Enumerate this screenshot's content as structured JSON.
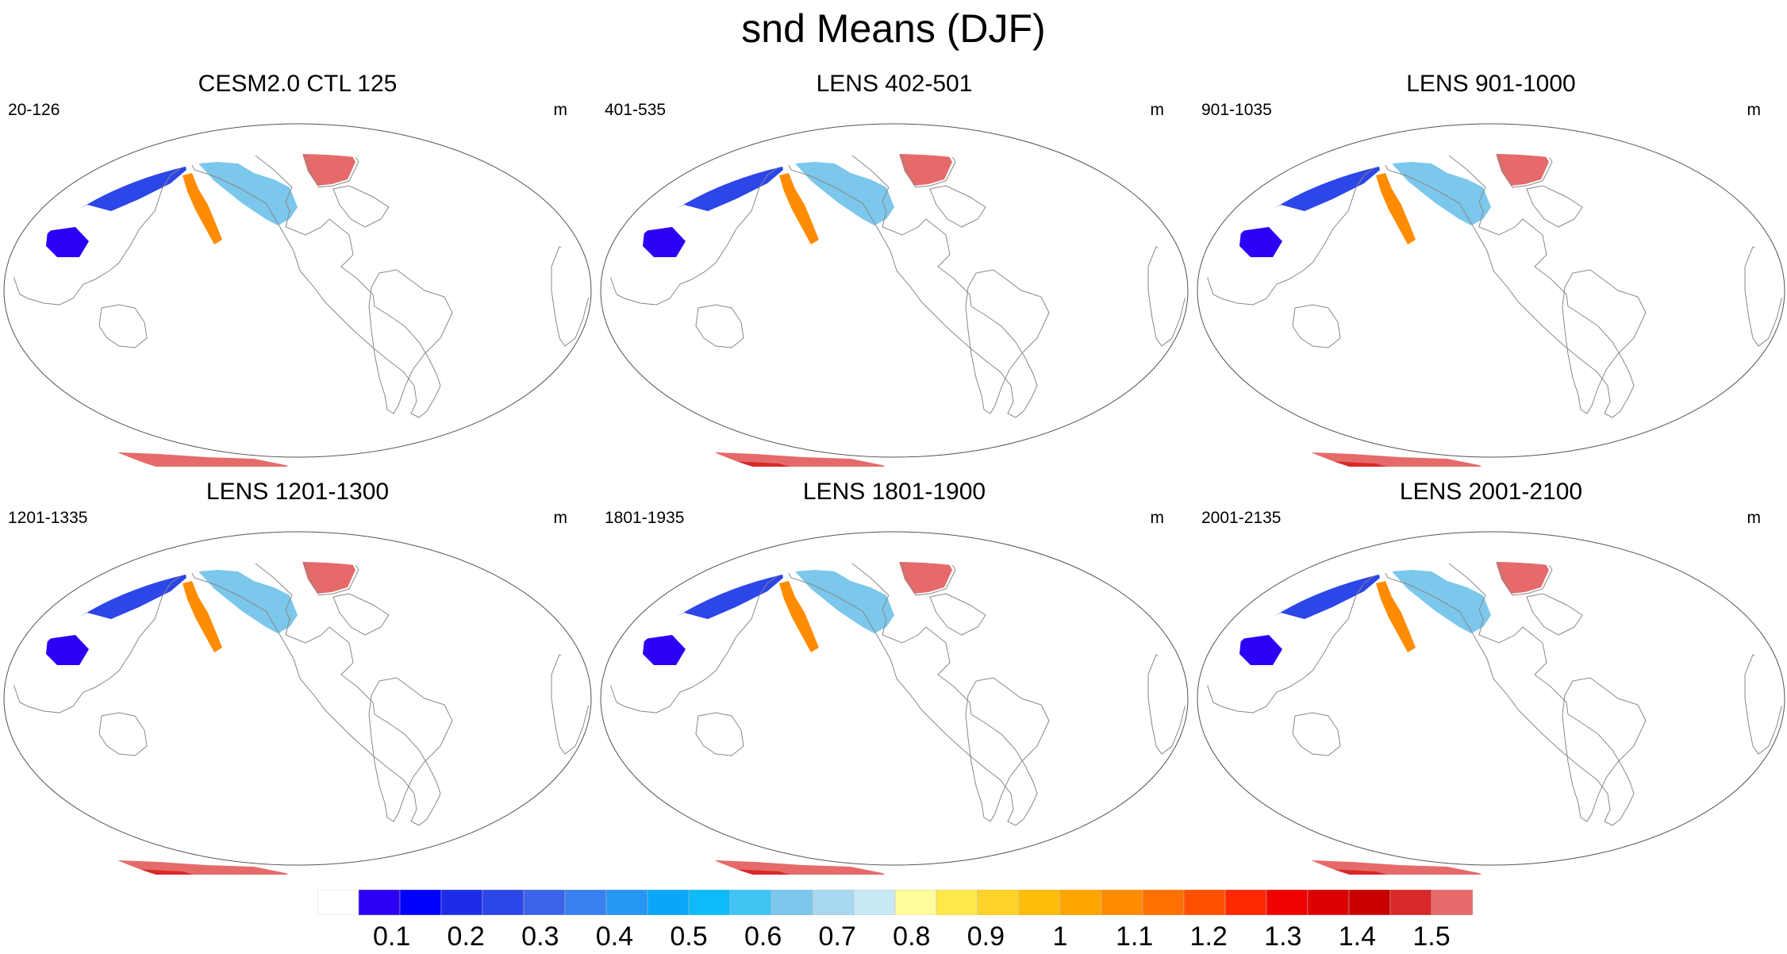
{
  "title": "snd Means (DJF)",
  "panels": [
    {
      "title": "CESM2.0 CTL 125",
      "range": "20-126",
      "units": "m",
      "greenland_level": 1.5,
      "antarctica_interior_level": 1.5,
      "nh_extent": 1.0
    },
    {
      "title": "LENS 402-501",
      "range": "401-535",
      "units": "m",
      "greenland_level": 1.5,
      "antarctica_interior_level": 1.4,
      "nh_extent": 1.0
    },
    {
      "title": "LENS 901-1000",
      "range": "901-1035",
      "units": "m",
      "greenland_level": 1.5,
      "antarctica_interior_level": 1.4,
      "nh_extent": 1.0
    },
    {
      "title": "LENS 1201-1300",
      "range": "1201-1335",
      "units": "m",
      "greenland_level": 1.5,
      "antarctica_interior_level": 1.4,
      "nh_extent": 1.0
    },
    {
      "title": "LENS 1801-1900",
      "range": "1801-1935",
      "units": "m",
      "greenland_level": 1.5,
      "antarctica_interior_level": 1.4,
      "nh_extent": 1.0
    },
    {
      "title": "LENS 2001-2100",
      "range": "2001-2135",
      "units": "m",
      "greenland_level": 1.5,
      "antarctica_interior_level": 1.4,
      "nh_extent": 1.0
    }
  ],
  "colorbar": {
    "colors": [
      "#ffffff",
      "#2d00f5",
      "#0000ff",
      "#1d2ce6",
      "#2c46e8",
      "#3a64ec",
      "#3a80f0",
      "#2596f4",
      "#0aa7f8",
      "#0ebaf8",
      "#40c4f4",
      "#7cc7ec",
      "#a8d8f0",
      "#c8e8f6",
      "#fffc9c",
      "#ffe84a",
      "#ffd228",
      "#ffbc0a",
      "#ffa500",
      "#ff8c00",
      "#ff7000",
      "#ff5000",
      "#ff2800",
      "#f00000",
      "#dc0000",
      "#c80000",
      "#d82828",
      "#e66a6a"
    ],
    "labels": [
      "0.1",
      "0.2",
      "0.3",
      "0.4",
      "0.5",
      "0.6",
      "0.7",
      "0.8",
      "0.9",
      "1",
      "1.1",
      "1.2",
      "1.3",
      "1.4",
      "1.5"
    ]
  }
}
